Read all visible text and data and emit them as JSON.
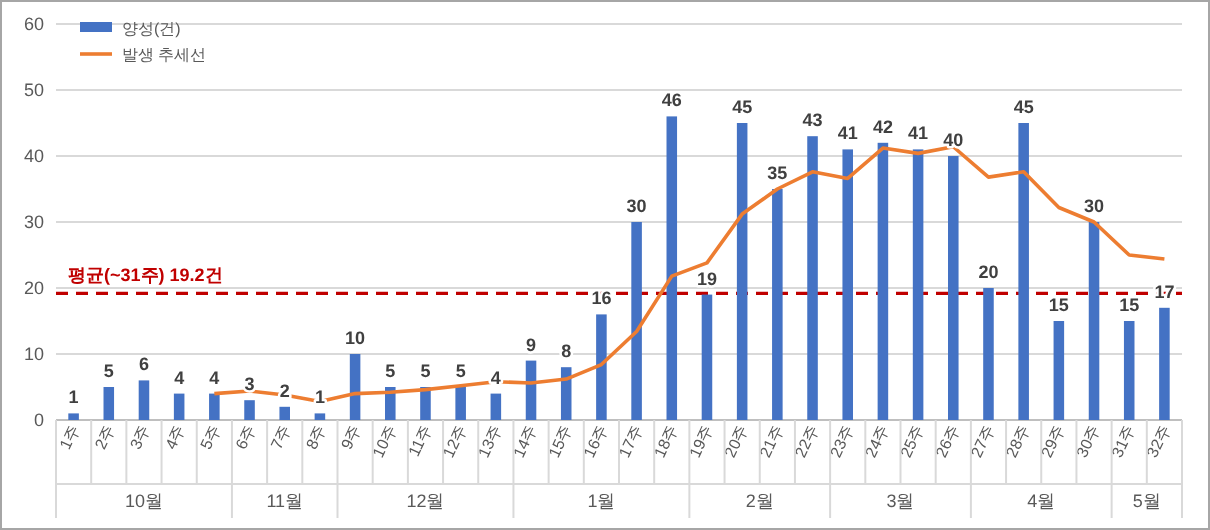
{
  "chart_data": {
    "type": "bar",
    "categories": [
      "1주",
      "2주",
      "3주",
      "4주",
      "5주",
      "6주",
      "7주",
      "8주",
      "9주",
      "10주",
      "11주",
      "12주",
      "13주",
      "14주",
      "15주",
      "16주",
      "17주",
      "18주",
      "19주",
      "20주",
      "21주",
      "22주",
      "23주",
      "24주",
      "25주",
      "26주",
      "27주",
      "28주",
      "29주",
      "30주",
      "31주",
      "32주"
    ],
    "series": [
      {
        "name": "양성(건)",
        "color": "#4472c4",
        "values": [
          1,
          5,
          6,
          4,
          4,
          3,
          2,
          1,
          10,
          5,
          5,
          5,
          4,
          9,
          8,
          16,
          30,
          46,
          19,
          45,
          35,
          43,
          41,
          42,
          41,
          40,
          20,
          45,
          15,
          30,
          15,
          17
        ],
        "value_labels": [
          "1",
          "5",
          "6",
          "4",
          "4",
          "3",
          "2",
          "1",
          "10",
          "5",
          "5",
          "5",
          "4",
          "9",
          "8",
          "16",
          "30",
          "46",
          "19",
          "45",
          "35",
          "43",
          "41",
          "42",
          "41",
          "40",
          "20",
          "45",
          "15",
          "30",
          "15",
          "17"
        ]
      },
      {
        "name": "발생 추세선",
        "type": "line",
        "color": "#ed7d31",
        "values": [
          null,
          null,
          null,
          null,
          4,
          4.4,
          3.8,
          2.8,
          4,
          4.2,
          4.6,
          5.2,
          5.8,
          5.6,
          6.2,
          8.4,
          13.4,
          21.8,
          23.8,
          31.2,
          35,
          37.6,
          36.6,
          41.2,
          40.4,
          41.4,
          36.8,
          37.6,
          32.2,
          30,
          25,
          24.4
        ]
      }
    ],
    "ylim": [
      0,
      60
    ],
    "yticks": [
      0,
      10,
      20,
      30,
      40,
      50,
      60
    ],
    "grid": "y",
    "legend": "top left",
    "ref_lines": [
      {
        "axis": "y",
        "value": 19.2,
        "label": "평균(~31주) 19.2건",
        "color": "#c00000",
        "line_style": "dashed"
      }
    ],
    "annotations": [
      "10월",
      "11월",
      "12월",
      "1월",
      "2월",
      "3월",
      "4월",
      "5월"
    ]
  }
}
